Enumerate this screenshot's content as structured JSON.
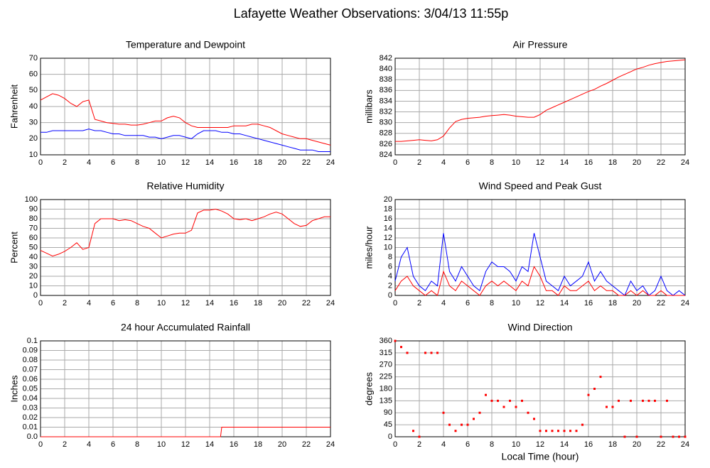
{
  "title": "Lafayette Weather Observations: 3/04/13 11:55p",
  "chart_data": [
    {
      "type": "line",
      "title": "Temperature and Dewpoint",
      "y_label": "Fahrenheit",
      "x": [
        0,
        0.5,
        1,
        1.5,
        2,
        2.5,
        3,
        3.5,
        4,
        4.5,
        5,
        5.5,
        6,
        6.5,
        7,
        7.5,
        8,
        8.5,
        9,
        9.5,
        10,
        10.5,
        11,
        11.5,
        12,
        12.5,
        13,
        13.5,
        14,
        14.5,
        15,
        15.5,
        16,
        16.5,
        17,
        17.5,
        18,
        18.5,
        19,
        19.5,
        20,
        20.5,
        21,
        21.5,
        22,
        22.5,
        23,
        23.5,
        24
      ],
      "series": [
        {
          "color": "#ff0000",
          "values": [
            44,
            46,
            48,
            47,
            45,
            42,
            40,
            43,
            44,
            32,
            31,
            30,
            29.5,
            29,
            29,
            28.5,
            28.5,
            29,
            30,
            31,
            31,
            33,
            34,
            33,
            30,
            28,
            27,
            27,
            27,
            27,
            27,
            27,
            28,
            28,
            28,
            29,
            29,
            28,
            27,
            25,
            23,
            22,
            21,
            20,
            20,
            19,
            18,
            17,
            16
          ]
        },
        {
          "color": "#0000ff",
          "values": [
            24,
            24,
            25,
            25,
            25,
            25,
            25,
            25,
            26,
            25,
            25,
            24,
            23,
            23,
            22,
            22,
            22,
            22,
            21,
            21,
            20,
            21,
            22,
            22,
            21,
            20,
            23,
            25,
            25,
            25,
            24,
            24,
            23,
            23,
            22,
            21,
            20,
            19,
            18,
            17,
            16,
            15,
            14,
            13,
            13,
            13,
            12,
            12,
            12
          ]
        }
      ],
      "xlim": [
        0,
        24
      ],
      "xticks": [
        0,
        2,
        4,
        6,
        8,
        10,
        12,
        14,
        16,
        18,
        20,
        22,
        24
      ],
      "ylim": [
        10,
        70
      ],
      "yticks": [
        10,
        20,
        30,
        40,
        50,
        60,
        70
      ],
      "grid": true
    },
    {
      "type": "line",
      "title": "Air Pressure",
      "y_label": "millibars",
      "x": [
        0,
        0.5,
        1,
        1.5,
        2,
        2.5,
        3,
        3.5,
        4,
        4.5,
        5,
        5.5,
        6,
        6.5,
        7,
        7.5,
        8,
        8.5,
        9,
        9.5,
        10,
        10.5,
        11,
        11.5,
        12,
        12.5,
        13,
        13.5,
        14,
        14.5,
        15,
        15.5,
        16,
        16.5,
        17,
        17.5,
        18,
        18.5,
        19,
        19.5,
        20,
        20.5,
        21,
        21.5,
        22,
        22.5,
        23,
        23.5,
        24
      ],
      "series": [
        {
          "color": "#ff0000",
          "values": [
            826.5,
            826.5,
            826.6,
            826.7,
            826.8,
            826.7,
            826.6,
            826.8,
            827.5,
            829,
            830.2,
            830.6,
            830.8,
            830.9,
            831,
            831.2,
            831.3,
            831.4,
            831.5,
            831.4,
            831.2,
            831.1,
            831,
            831,
            831.5,
            832.3,
            832.8,
            833.3,
            833.8,
            834.3,
            834.8,
            835.3,
            835.8,
            836.2,
            836.8,
            837.3,
            837.9,
            838.5,
            839,
            839.5,
            840,
            840.3,
            840.7,
            841,
            841.2,
            841.4,
            841.5,
            841.6,
            841.7
          ]
        }
      ],
      "xlim": [
        0,
        24
      ],
      "xticks": [
        0,
        2,
        4,
        6,
        8,
        10,
        12,
        14,
        16,
        18,
        20,
        22,
        24
      ],
      "ylim": [
        824,
        842
      ],
      "yticks": [
        824,
        826,
        828,
        830,
        832,
        834,
        836,
        838,
        840,
        842
      ],
      "grid": true
    },
    {
      "type": "line",
      "title": "Relative Humidity",
      "y_label": "Percent",
      "x": [
        0,
        0.5,
        1,
        1.5,
        2,
        2.5,
        3,
        3.5,
        4,
        4.5,
        5,
        5.5,
        6,
        6.5,
        7,
        7.5,
        8,
        8.5,
        9,
        9.5,
        10,
        10.5,
        11,
        11.5,
        12,
        12.5,
        13,
        13.5,
        14,
        14.5,
        15,
        15.5,
        16,
        16.5,
        17,
        17.5,
        18,
        18.5,
        19,
        19.5,
        20,
        20.5,
        21,
        21.5,
        22,
        22.5,
        23,
        23.5,
        24
      ],
      "series": [
        {
          "color": "#ff0000",
          "values": [
            47,
            44,
            41,
            43,
            46,
            50,
            55,
            48,
            50,
            75,
            80,
            80,
            80,
            78,
            79,
            78,
            75,
            72,
            70,
            65,
            60,
            62,
            64,
            65,
            65,
            68,
            86,
            89,
            89,
            90,
            88,
            85,
            80,
            79,
            80,
            78,
            80,
            82,
            85,
            87,
            85,
            80,
            75,
            72,
            73,
            78,
            80,
            82,
            82
          ]
        }
      ],
      "xlim": [
        0,
        24
      ],
      "xticks": [
        0,
        2,
        4,
        6,
        8,
        10,
        12,
        14,
        16,
        18,
        20,
        22,
        24
      ],
      "ylim": [
        0,
        100
      ],
      "yticks": [
        0,
        10,
        20,
        30,
        40,
        50,
        60,
        70,
        80,
        90,
        100
      ],
      "grid": true
    },
    {
      "type": "line",
      "title": "Wind Speed and Peak Gust",
      "y_label": "miles/hour",
      "x": [
        0,
        0.5,
        1,
        1.5,
        2,
        2.5,
        3,
        3.5,
        4,
        4.5,
        5,
        5.5,
        6,
        6.5,
        7,
        7.5,
        8,
        8.5,
        9,
        9.5,
        10,
        10.5,
        11,
        11.5,
        12,
        12.5,
        13,
        13.5,
        14,
        14.5,
        15,
        15.5,
        16,
        16.5,
        17,
        17.5,
        18,
        18.5,
        19,
        19.5,
        20,
        20.5,
        21,
        21.5,
        22,
        22.5,
        23,
        23.5,
        24
      ],
      "series": [
        {
          "color": "#0000ff",
          "values": [
            3,
            8,
            10,
            4,
            2,
            1,
            3,
            2,
            13,
            5,
            3,
            6,
            4,
            2,
            1,
            5,
            7,
            6,
            6,
            5,
            3,
            6,
            5,
            13,
            8,
            3,
            2,
            1,
            4,
            2,
            3,
            4,
            7,
            3,
            5,
            3,
            2,
            1,
            0,
            3,
            1,
            2,
            0,
            1,
            4,
            1,
            0,
            1,
            0
          ]
        },
        {
          "color": "#ff0000",
          "values": [
            1,
            3,
            4,
            2,
            1,
            0,
            1,
            0,
            5,
            2,
            1,
            3,
            2,
            1,
            0,
            2,
            3,
            2,
            3,
            2,
            1,
            3,
            2,
            6,
            4,
            1,
            1,
            0,
            2,
            1,
            1,
            2,
            3,
            1,
            2,
            1,
            1,
            0,
            0,
            1,
            0,
            1,
            0,
            0,
            1,
            0,
            0,
            0,
            0
          ]
        }
      ],
      "xlim": [
        0,
        24
      ],
      "xticks": [
        0,
        2,
        4,
        6,
        8,
        10,
        12,
        14,
        16,
        18,
        20,
        22,
        24
      ],
      "ylim": [
        0,
        20
      ],
      "yticks": [
        0,
        2,
        4,
        6,
        8,
        10,
        12,
        14,
        16,
        18,
        20
      ],
      "grid": true
    },
    {
      "type": "line",
      "title": "24 hour Accumulated Rainfall",
      "y_label": "Inches",
      "x": [
        0,
        14.9,
        15,
        24
      ],
      "series": [
        {
          "color": "#ff0000",
          "values": [
            0,
            0,
            0.01,
            0.01
          ]
        }
      ],
      "xlim": [
        0,
        24
      ],
      "xticks": [
        0,
        2,
        4,
        6,
        8,
        10,
        12,
        14,
        16,
        18,
        20,
        22,
        24
      ],
      "ylim": [
        0,
        0.1
      ],
      "yticks": [
        {
          "value": 0,
          "label": "0.0"
        },
        0.01,
        0.02,
        0.03,
        0.04,
        0.05,
        0.06,
        0.07,
        0.08,
        0.09,
        0.1
      ],
      "grid": true
    },
    {
      "type": "scatter",
      "title": "Wind Direction",
      "y_label": "degrees",
      "x_label": "Local Time (hour)",
      "x": [
        0,
        0.5,
        1,
        1.5,
        2,
        2.5,
        3,
        3.5,
        4,
        4.5,
        5,
        5.5,
        6,
        6.5,
        7,
        7.5,
        8,
        8.5,
        9,
        9.5,
        10,
        10.5,
        11,
        11.5,
        12,
        12.5,
        13,
        13.5,
        14,
        14.5,
        15,
        15.5,
        16,
        16.5,
        17,
        17.5,
        18,
        18.5,
        19,
        19.5,
        20,
        20.5,
        21,
        21.5,
        22,
        22.5,
        23,
        23.5,
        24
      ],
      "series": [
        {
          "color": "#ff0000",
          "values": [
            360,
            337,
            315,
            22,
            0,
            315,
            315,
            315,
            90,
            45,
            22,
            45,
            45,
            67,
            90,
            157,
            135,
            135,
            112,
            135,
            112,
            135,
            90,
            67,
            22,
            22,
            22,
            22,
            22,
            22,
            22,
            45,
            157,
            180,
            225,
            112,
            112,
            135,
            0,
            135,
            0,
            135,
            135,
            135,
            0,
            135,
            0,
            0,
            0
          ]
        }
      ],
      "xlim": [
        0,
        24
      ],
      "xticks": [
        0,
        2,
        4,
        6,
        8,
        10,
        12,
        14,
        16,
        18,
        20,
        22,
        24
      ],
      "ylim": [
        0,
        360
      ],
      "yticks": [
        0,
        45,
        90,
        135,
        180,
        225,
        270,
        315,
        360
      ],
      "grid": true
    }
  ]
}
